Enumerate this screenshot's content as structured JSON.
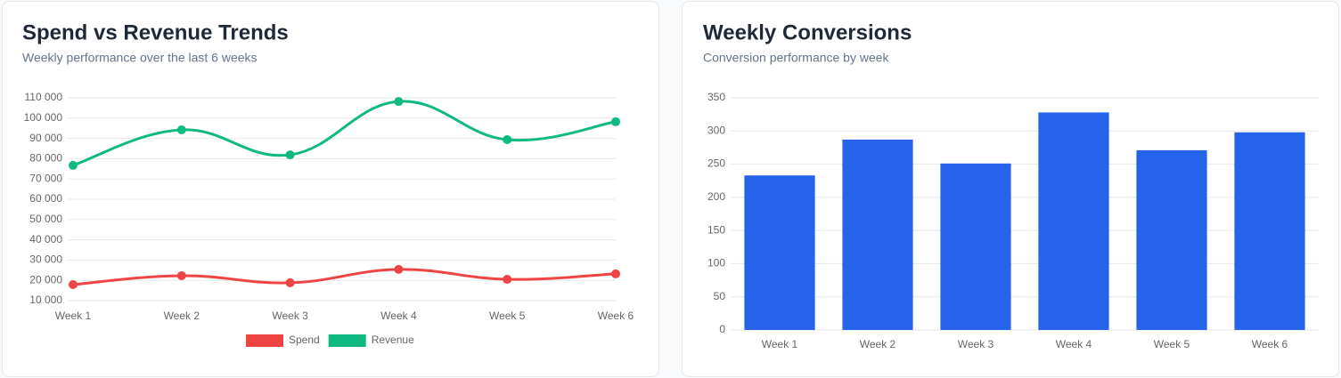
{
  "chart_data": [
    {
      "type": "line",
      "title": "Spend vs Revenue Trends",
      "subtitle": "Weekly performance over the last 6 weeks",
      "categories": [
        "Week 1",
        "Week 2",
        "Week 3",
        "Week 4",
        "Week 5",
        "Week 6"
      ],
      "series": [
        {
          "name": "Spend",
          "color": "#ef4444",
          "values": [
            17900,
            22300,
            18800,
            25400,
            20500,
            23200
          ]
        },
        {
          "name": "Revenue",
          "color": "#10b981",
          "values": [
            76700,
            94200,
            81900,
            108200,
            89400,
            98200
          ]
        }
      ],
      "ylim": [
        10000,
        110000
      ],
      "yticks": [
        {
          "value": 10000,
          "label": "10 000"
        },
        {
          "value": 20000,
          "label": "20 000"
        },
        {
          "value": 30000,
          "label": "30 000"
        },
        {
          "value": 40000,
          "label": "40 000"
        },
        {
          "value": 50000,
          "label": "50 000"
        },
        {
          "value": 60000,
          "label": "60 000"
        },
        {
          "value": 70000,
          "label": "70 000"
        },
        {
          "value": 80000,
          "label": "80 000"
        },
        {
          "value": 90000,
          "label": "90 000"
        },
        {
          "value": 100000,
          "label": "100 000"
        },
        {
          "value": 110000,
          "label": "110 000"
        }
      ],
      "grid": true,
      "legend": "bottom"
    },
    {
      "type": "bar",
      "title": "Weekly Conversions",
      "subtitle": "Conversion performance by week",
      "categories": [
        "Week 1",
        "Week 2",
        "Week 3",
        "Week 4",
        "Week 5",
        "Week 6"
      ],
      "values": [
        233,
        287,
        251,
        328,
        271,
        298
      ],
      "color": "#2563eb",
      "ylim": [
        0,
        350
      ],
      "yticks": [
        0,
        50,
        100,
        150,
        200,
        250,
        300,
        350
      ],
      "grid": true
    }
  ]
}
